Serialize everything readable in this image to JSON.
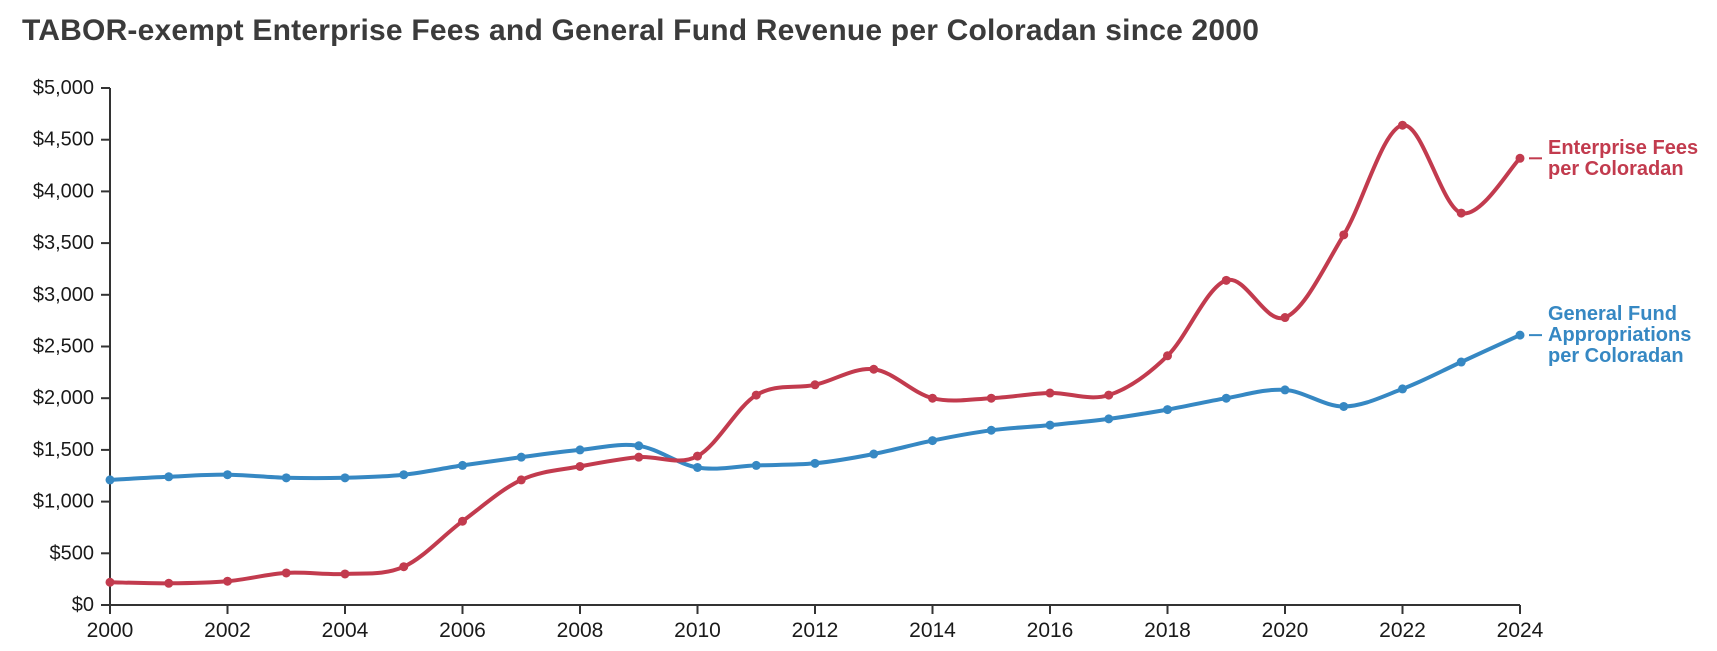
{
  "chart_data": {
    "type": "line",
    "title": "TABOR-exempt Enterprise Fees and General Fund Revenue per Coloradan since 2000",
    "x": [
      2000,
      2001,
      2002,
      2003,
      2004,
      2005,
      2006,
      2007,
      2008,
      2009,
      2010,
      2011,
      2012,
      2013,
      2014,
      2015,
      2016,
      2017,
      2018,
      2019,
      2020,
      2021,
      2022,
      2023,
      2024
    ],
    "xtick_labels": [
      "2000",
      "2002",
      "2004",
      "2006",
      "2008",
      "2010",
      "2012",
      "2014",
      "2016",
      "2018",
      "2020",
      "2022",
      "2024"
    ],
    "ytick_labels": [
      "$0",
      "$500",
      "$1,000",
      "$1,500",
      "$2,000",
      "$2,500",
      "$3,000",
      "$3,500",
      "$4,000",
      "$4,500",
      "$5,000"
    ],
    "ylim": [
      0,
      5000
    ],
    "ytick_step": 500,
    "grid": false,
    "legend_position": "end-of-line labels at right",
    "series": [
      {
        "name": "General Fund Appropriations per Coloradan",
        "label_lines": [
          "General Fund",
          "Appropriations",
          "per Coloradan"
        ],
        "color": "#3688c3",
        "values": [
          1210,
          1240,
          1260,
          1230,
          1230,
          1260,
          1350,
          1430,
          1500,
          1540,
          1330,
          1350,
          1370,
          1460,
          1590,
          1690,
          1740,
          1800,
          1890,
          2000,
          2080,
          1920,
          2090,
          2350,
          2610
        ]
      },
      {
        "name": "Enterprise Fees per Coloradan",
        "label_lines": [
          "Enterprise Fees",
          "per Coloradan"
        ],
        "color": "#c23b4e",
        "values": [
          220,
          210,
          230,
          310,
          300,
          370,
          810,
          1210,
          1340,
          1430,
          1440,
          2030,
          2130,
          2280,
          2000,
          2000,
          2050,
          2030,
          2410,
          3140,
          2780,
          3580,
          4640,
          3790,
          4320
        ]
      }
    ],
    "colors": {
      "title_text": "#3b3b3b",
      "axis": "#333333",
      "tick_text": "#1a1a1a"
    }
  }
}
